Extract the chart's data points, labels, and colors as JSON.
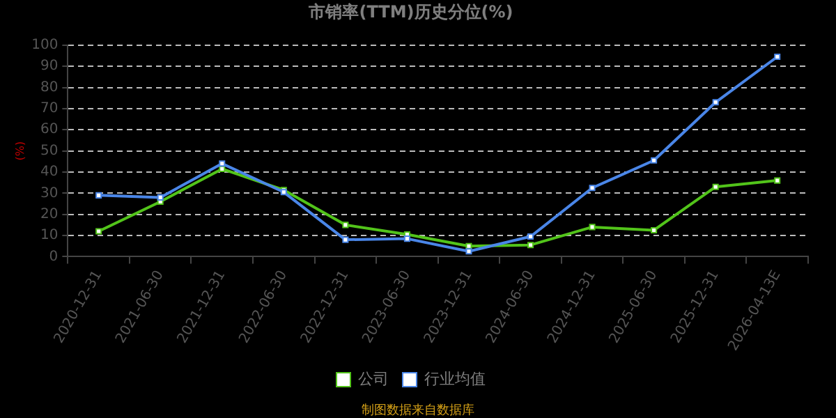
{
  "chart_data": {
    "type": "line",
    "title": "市销率(TTM)历史分位(%)",
    "ylabel": "(%)",
    "categories": [
      "2020-12-31",
      "2021-06-30",
      "2021-12-31",
      "2022-06-30",
      "2022-12-31",
      "2023-06-30",
      "2023-12-31",
      "2024-06-30",
      "2024-12-31",
      "2025-06-30",
      "2025-12-31",
      "2026-04-13E"
    ],
    "series": [
      {
        "name": "公司",
        "color": "#52c41a",
        "values": [
          12,
          26,
          41.5,
          31.5,
          15,
          10.5,
          5,
          5.5,
          14,
          12.5,
          33,
          36
        ]
      },
      {
        "name": "行业均值",
        "color": "#4a86e8",
        "values": [
          29,
          28,
          44,
          30.5,
          8,
          8.5,
          2.5,
          9.5,
          32.5,
          45.5,
          73,
          94.5
        ]
      }
    ],
    "ylim": [
      0,
      100
    ],
    "yticks": [
      0,
      10,
      20,
      30,
      40,
      50,
      60,
      70,
      80,
      90,
      100
    ],
    "grid": "y",
    "legend": "bottom",
    "marker": "square",
    "annotations": [
      "制图数据来自数据库"
    ]
  }
}
